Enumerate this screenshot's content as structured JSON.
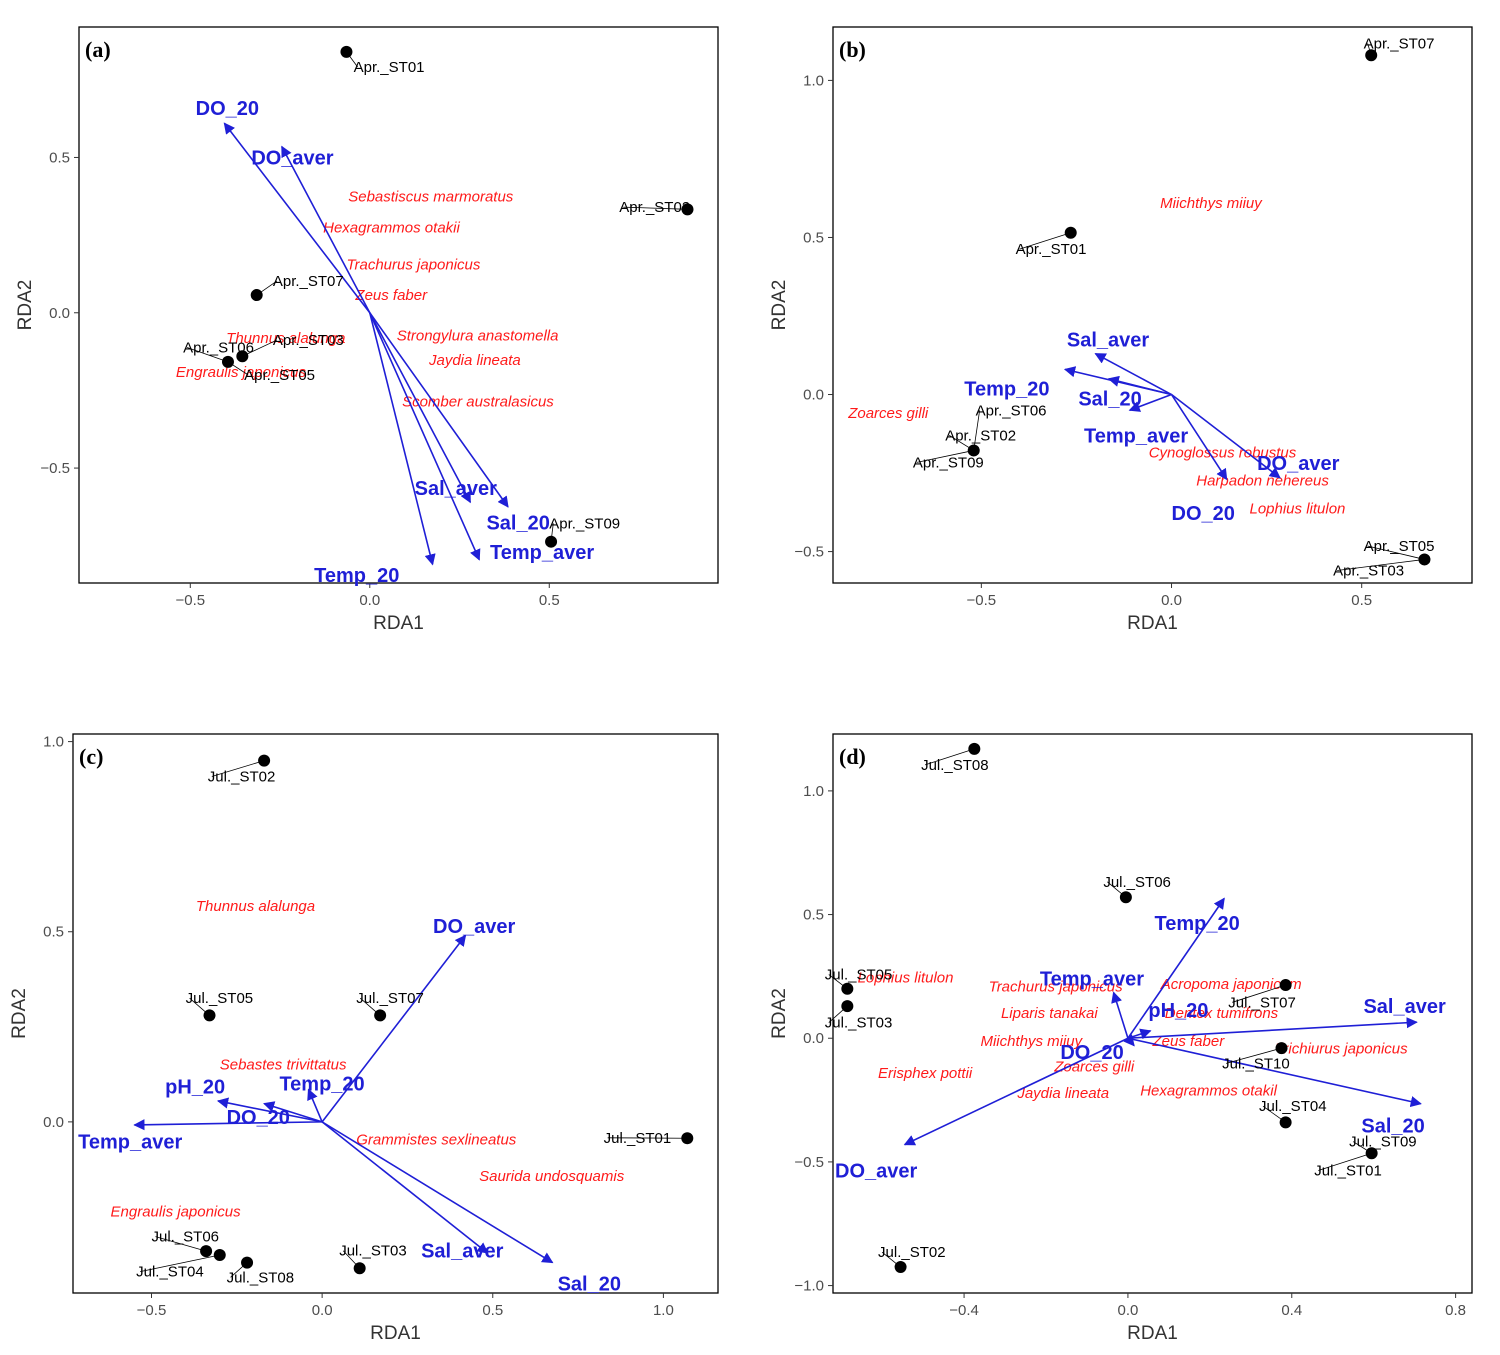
{
  "colors": {
    "site": "#000000",
    "species": "#ff1a1a",
    "vector": "#1f1fd6",
    "frame": "#000000"
  },
  "chart_data": [
    {
      "type": "scatter",
      "panel": "(a)",
      "xlabel": "RDA1",
      "ylabel": "RDA2",
      "xlim": [
        -0.81,
        0.97
      ],
      "ylim": [
        -0.87,
        0.92
      ],
      "xticks": [
        -0.5,
        0.0,
        0.5
      ],
      "yticks": [
        -0.5,
        0.0,
        0.5
      ],
      "tick_labels_x": [
        "−0.5",
        "0.0",
        "0.5"
      ],
      "tick_labels_y": [
        "−0.5",
        "0.0",
        "0.5"
      ],
      "grid": false,
      "sites": [
        {
          "name": "Apr._ST01",
          "x": -0.065,
          "y": 0.84,
          "lx": -0.045,
          "ly": 0.775
        },
        {
          "name": "Apr._ST02",
          "x": 0.885,
          "y": 0.333,
          "lx": 0.695,
          "ly": 0.324
        },
        {
          "name": "Apr._ST07",
          "x": -0.315,
          "y": 0.057,
          "lx": -0.27,
          "ly": 0.086
        },
        {
          "name": "Apr._ST03",
          "x": -0.355,
          "y": -0.14,
          "lx": -0.27,
          "ly": -0.104
        },
        {
          "name": "Apr._ST06",
          "x": -0.395,
          "y": -0.158,
          "lx": -0.52,
          "ly": -0.128
        },
        {
          "name": "Apr._ST05",
          "x": -0.395,
          "y": -0.158,
          "lx": -0.35,
          "ly": -0.216
        },
        {
          "name": "Apr._ST09",
          "x": 0.505,
          "y": -0.737,
          "lx": 0.5,
          "ly": -0.694
        }
      ],
      "species": [
        {
          "name": "Sebastiscus marmoratus",
          "x": -0.06,
          "y": 0.358
        },
        {
          "name": "Hexagrammos otakii",
          "x": -0.13,
          "y": 0.258
        },
        {
          "name": "Trachurus japonicus",
          "x": -0.065,
          "y": 0.14
        },
        {
          "name": "Zeus faber",
          "x": -0.04,
          "y": 0.041
        },
        {
          "name": "Strongylura anastomella",
          "x": 0.075,
          "y": -0.089
        },
        {
          "name": "Thunnus alalunga",
          "x": -0.4,
          "y": -0.098
        },
        {
          "name": "Jaydia lineata",
          "x": 0.165,
          "y": -0.168
        },
        {
          "name": "Engraulis japonicus",
          "x": -0.54,
          "y": -0.206
        },
        {
          "name": "Scomber australasicus",
          "x": 0.09,
          "y": -0.301
        }
      ],
      "vectors": [
        {
          "name": "DO_20",
          "x": -0.405,
          "y": 0.61,
          "lx": -0.485,
          "ly": 0.636
        },
        {
          "name": "DO_aver",
          "x": -0.245,
          "y": 0.535,
          "lx": -0.33,
          "ly": 0.477
        },
        {
          "name": "Sal_aver",
          "x": 0.28,
          "y": -0.61,
          "lx": 0.125,
          "ly": -0.587
        },
        {
          "name": "Sal_20",
          "x": 0.385,
          "y": -0.625,
          "lx": 0.325,
          "ly": -0.697
        },
        {
          "name": "Temp_aver",
          "x": 0.305,
          "y": -0.795,
          "lx": 0.335,
          "ly": -0.792
        },
        {
          "name": "Temp_20",
          "x": 0.175,
          "y": -0.81,
          "lx": -0.155,
          "ly": -0.867
        }
      ]
    },
    {
      "type": "scatter",
      "panel": "(b)",
      "xlabel": "RDA1",
      "ylabel": "RDA2",
      "xlim": [
        -0.89,
        0.79
      ],
      "ylim": [
        -0.6,
        1.17
      ],
      "xticks": [
        -0.5,
        0.0,
        0.5
      ],
      "yticks": [
        -0.5,
        0.0,
        0.5,
        1.0
      ],
      "tick_labels_x": [
        "−0.5",
        "0.0",
        "0.5"
      ],
      "tick_labels_y": [
        "−0.5",
        "0.0",
        "0.5",
        "1.0"
      ],
      "grid": false,
      "sites": [
        {
          "name": "Apr._ST07",
          "x": 0.525,
          "y": 1.08,
          "lx": 0.505,
          "ly": 1.102
        },
        {
          "name": "Apr._ST01",
          "x": -0.265,
          "y": 0.515,
          "lx": -0.41,
          "ly": 0.447
        },
        {
          "name": "Apr._ST06",
          "x": -0.52,
          "y": -0.178,
          "lx": -0.515,
          "ly": -0.066
        },
        {
          "name": "Apr._ST02",
          "x": -0.52,
          "y": -0.178,
          "lx": -0.595,
          "ly": -0.146
        },
        {
          "name": "Apr._ST09",
          "x": -0.52,
          "y": -0.178,
          "lx": -0.68,
          "ly": -0.232
        },
        {
          "name": "Apr._ST05",
          "x": 0.665,
          "y": -0.525,
          "lx": 0.505,
          "ly": -0.498
        },
        {
          "name": "Apr._ST03",
          "x": 0.665,
          "y": -0.525,
          "lx": 0.425,
          "ly": -0.576
        }
      ],
      "species": [
        {
          "name": "Miichthys miiuy",
          "x": -0.03,
          "y": 0.593
        },
        {
          "name": "Zoarces gilli",
          "x": -0.85,
          "y": -0.074
        },
        {
          "name": "Cynoglossus robustus",
          "x": -0.06,
          "y": -0.2
        },
        {
          "name": "Harpadon nehereus",
          "x": 0.065,
          "y": -0.29
        },
        {
          "name": "Lophius litulon",
          "x": 0.205,
          "y": -0.378
        }
      ],
      "vectors": [
        {
          "name": "Sal_aver",
          "x": -0.2,
          "y": 0.13,
          "lx": -0.275,
          "ly": 0.153
        },
        {
          "name": "Temp_20",
          "x": -0.28,
          "y": 0.08,
          "lx": -0.545,
          "ly": -0.003
        },
        {
          "name": "Sal_20",
          "x": -0.165,
          "y": 0.05,
          "lx": -0.245,
          "ly": -0.035
        },
        {
          "name": "Temp_aver",
          "x": -0.11,
          "y": -0.05,
          "lx": -0.23,
          "ly": -0.153
        },
        {
          "name": "DO_aver",
          "x": 0.285,
          "y": -0.265,
          "lx": 0.225,
          "ly": -0.24
        },
        {
          "name": "DO_20",
          "x": 0.145,
          "y": -0.27,
          "lx": 0.0,
          "ly": -0.4
        }
      ]
    },
    {
      "type": "scatter",
      "panel": "(c)",
      "xlabel": "RDA1",
      "ylabel": "RDA2",
      "xlim": [
        -0.73,
        1.16
      ],
      "ylim": [
        -0.45,
        1.02
      ],
      "xticks": [
        -0.5,
        0.0,
        0.5,
        1.0
      ],
      "yticks": [
        0.0,
        0.5,
        1.0
      ],
      "tick_labels_x": [
        "−0.5",
        "0.0",
        "0.5",
        "1.0"
      ],
      "tick_labels_y": [
        "0.0",
        "0.5",
        "1.0"
      ],
      "grid": false,
      "sites": [
        {
          "name": "Jul._ST02",
          "x": -0.17,
          "y": 0.95,
          "lx": -0.335,
          "ly": 0.895
        },
        {
          "name": "Jul._ST05",
          "x": -0.33,
          "y": 0.28,
          "lx": -0.4,
          "ly": 0.312
        },
        {
          "name": "Jul._ST07",
          "x": 0.17,
          "y": 0.28,
          "lx": 0.1,
          "ly": 0.312
        },
        {
          "name": "Jul._ST01",
          "x": 1.07,
          "y": -0.043,
          "lx": 0.825,
          "ly": -0.055
        },
        {
          "name": "Jul._ST06",
          "x": -0.34,
          "y": -0.34,
          "lx": -0.5,
          "ly": -0.315
        },
        {
          "name": "Jul._ST04",
          "x": -0.3,
          "y": -0.35,
          "lx": -0.545,
          "ly": -0.407
        },
        {
          "name": "Jul._ST08",
          "x": -0.22,
          "y": -0.37,
          "lx": -0.28,
          "ly": -0.422
        },
        {
          "name": "Jul._ST03",
          "x": 0.11,
          "y": -0.385,
          "lx": 0.05,
          "ly": -0.352
        }
      ],
      "species": [
        {
          "name": "Thunnus alalunga",
          "x": -0.37,
          "y": 0.555
        },
        {
          "name": "Sebastes trivittatus",
          "x": -0.3,
          "y": 0.138
        },
        {
          "name": "Grammistes sexlineatus",
          "x": 0.1,
          "y": -0.06
        },
        {
          "name": "Saurida undosquamis",
          "x": 0.46,
          "y": -0.155
        },
        {
          "name": "Engraulis japonicus",
          "x": -0.62,
          "y": -0.249
        }
      ],
      "vectors": [
        {
          "name": "DO_aver",
          "x": 0.42,
          "y": 0.49,
          "lx": 0.325,
          "ly": 0.497
        },
        {
          "name": "pH_20",
          "x": -0.305,
          "y": 0.055,
          "lx": -0.46,
          "ly": 0.075
        },
        {
          "name": "Temp_20",
          "x": -0.04,
          "y": 0.085,
          "lx": -0.125,
          "ly": 0.082
        },
        {
          "name": "DO_20",
          "x": -0.17,
          "y": 0.048,
          "lx": -0.28,
          "ly": -0.006
        },
        {
          "name": "Temp_aver",
          "x": -0.55,
          "y": -0.008,
          "lx": -0.715,
          "ly": -0.07
        },
        {
          "name": "Sal_aver",
          "x": 0.485,
          "y": -0.345,
          "lx": 0.29,
          "ly": -0.357
        },
        {
          "name": "Sal_20",
          "x": 0.675,
          "y": -0.37,
          "lx": 0.69,
          "ly": -0.443
        }
      ]
    },
    {
      "type": "scatter",
      "panel": "(d)",
      "xlabel": "RDA1",
      "ylabel": "RDA2",
      "xlim": [
        -0.72,
        0.84
      ],
      "ylim": [
        -1.03,
        1.23
      ],
      "xticks": [
        -0.4,
        0.0,
        0.4,
        0.8
      ],
      "yticks": [
        -1.0,
        -0.5,
        0.0,
        0.5,
        1.0
      ],
      "tick_labels_x": [
        "−0.4",
        "0.0",
        "0.4",
        "0.8"
      ],
      "tick_labels_y": [
        "−1.0",
        "−0.5",
        "0.0",
        "0.5",
        "1.0"
      ],
      "grid": false,
      "sites": [
        {
          "name": "Jul._ST08",
          "x": -0.375,
          "y": 1.17,
          "lx": -0.505,
          "ly": 1.085
        },
        {
          "name": "Jul._ST06",
          "x": -0.005,
          "y": 0.57,
          "lx": -0.06,
          "ly": 0.612
        },
        {
          "name": "Jul._ST05",
          "x": -0.685,
          "y": 0.2,
          "lx": -0.74,
          "ly": 0.237
        },
        {
          "name": "Jul._ST03",
          "x": -0.685,
          "y": 0.13,
          "lx": -0.74,
          "ly": 0.043
        },
        {
          "name": "Jul._ST07",
          "x": 0.385,
          "y": 0.215,
          "lx": 0.245,
          "ly": 0.125
        },
        {
          "name": "Jul._ST10",
          "x": 0.375,
          "y": -0.04,
          "lx": 0.23,
          "ly": -0.122
        },
        {
          "name": "Jul._ST04",
          "x": 0.385,
          "y": -0.34,
          "lx": 0.32,
          "ly": -0.295
        },
        {
          "name": "Jul._ST09",
          "x": 0.595,
          "y": -0.465,
          "lx": 0.54,
          "ly": -0.438
        },
        {
          "name": "Jul._ST01",
          "x": 0.595,
          "y": -0.465,
          "lx": 0.455,
          "ly": -0.555
        },
        {
          "name": "Jul._ST02",
          "x": -0.555,
          "y": -0.925,
          "lx": -0.61,
          "ly": -0.885
        }
      ],
      "species": [
        {
          "name": "Lophius litulon",
          "x": -0.66,
          "y": 0.226
        },
        {
          "name": "Acropoma japonicum",
          "x": 0.08,
          "y": 0.2
        },
        {
          "name": "Trachurus japonicus",
          "x": -0.34,
          "y": 0.189
        },
        {
          "name": "Dentex tumifrons",
          "x": 0.09,
          "y": 0.082
        },
        {
          "name": "Liparis tanakai",
          "x": -0.31,
          "y": 0.082
        },
        {
          "name": "Miichthys miiuy",
          "x": -0.36,
          "y": -0.031
        },
        {
          "name": "Zeus faber",
          "x": 0.06,
          "y": -0.031
        },
        {
          "name": "Trichiurus japonicus",
          "x": 0.36,
          "y": -0.062
        },
        {
          "name": "Zoarces gilli",
          "x": -0.18,
          "y": -0.134
        },
        {
          "name": "Erisphex pottii",
          "x": -0.61,
          "y": -0.16
        },
        {
          "name": "Hexagrammos otakil",
          "x": 0.03,
          "y": -0.232
        },
        {
          "name": "Jaydia lineata",
          "x": -0.27,
          "y": -0.242
        }
      ],
      "vectors": [
        {
          "name": "Temp_20",
          "x": 0.235,
          "y": 0.565,
          "lx": 0.065,
          "ly": 0.437
        },
        {
          "name": "Temp_aver",
          "x": -0.035,
          "y": 0.185,
          "lx": -0.215,
          "ly": 0.213
        },
        {
          "name": "pH_20",
          "x": 0.055,
          "y": 0.03,
          "lx": 0.05,
          "ly": 0.085
        },
        {
          "name": "DO_20",
          "x": 0.015,
          "y": -0.03,
          "lx": -0.165,
          "ly": -0.083
        },
        {
          "name": "Sal_aver",
          "x": 0.705,
          "y": 0.065,
          "lx": 0.575,
          "ly": 0.103
        },
        {
          "name": "Sal_20",
          "x": 0.715,
          "y": -0.265,
          "lx": 0.57,
          "ly": -0.382
        },
        {
          "name": "DO_aver",
          "x": -0.545,
          "y": -0.43,
          "lx": -0.715,
          "ly": -0.563
        }
      ]
    }
  ]
}
